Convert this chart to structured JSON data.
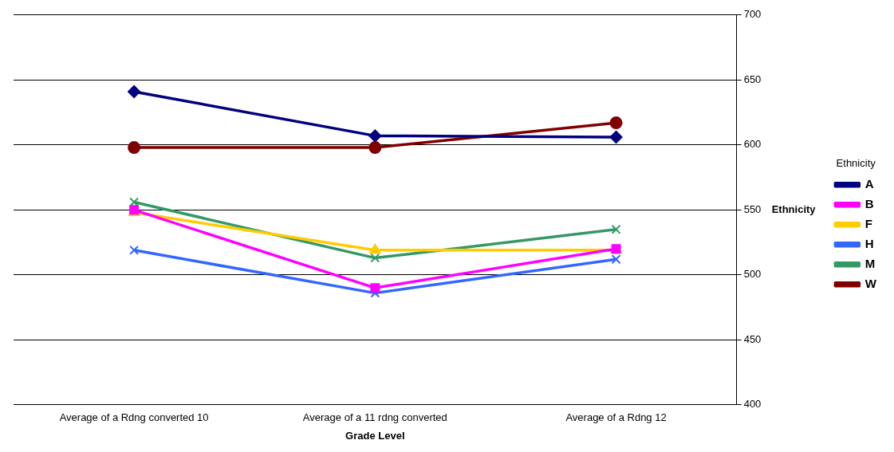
{
  "chart_data": {
    "type": "line",
    "xlabel": "Grade Level",
    "ylabel": "Ethnicity",
    "legend_title": "Ethnicity",
    "legend": "right",
    "grid": "y",
    "ylim": [
      400,
      700
    ],
    "yticks": [
      400,
      450,
      500,
      550,
      600,
      650,
      700
    ],
    "categories": [
      "Average of a Rdng converted 10",
      "Average of a 11 rdng converted",
      "Average of a Rdng 12"
    ],
    "series": [
      {
        "name": "A",
        "color": "#000080",
        "marker": "diamond",
        "values": [
          641,
          607,
          606
        ]
      },
      {
        "name": "B",
        "color": "#ff00ff",
        "marker": "square",
        "values": [
          550,
          490,
          520
        ]
      },
      {
        "name": "F",
        "color": "#ffcc00",
        "marker": "triangle",
        "values": [
          548,
          519,
          519
        ]
      },
      {
        "name": "H",
        "color": "#3366ff",
        "marker": "cross",
        "values": [
          519,
          486,
          512
        ]
      },
      {
        "name": "M",
        "color": "#339966",
        "marker": "cross",
        "values": [
          556,
          513,
          535
        ]
      },
      {
        "name": "W",
        "color": "#800000",
        "marker": "circle",
        "values": [
          598,
          598,
          617
        ]
      }
    ]
  }
}
